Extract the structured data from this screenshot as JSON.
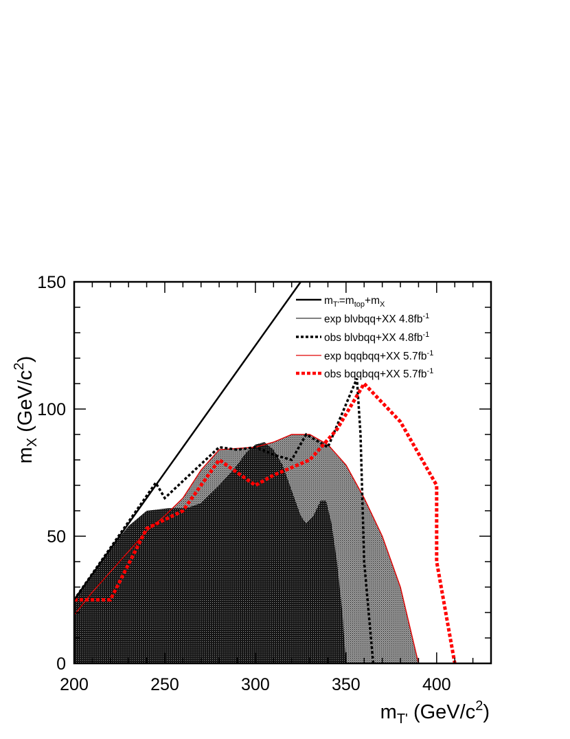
{
  "chart_data": {
    "type": "area",
    "xlabel": {
      "main": "m",
      "sub": "T'",
      "units": "(GeV/c",
      "sup": "2",
      "close": ")"
    },
    "ylabel": {
      "main": "m",
      "sub": "X",
      "units": "(GeV/c",
      "sup": "2",
      "close": ")"
    },
    "xlim": [
      200,
      430
    ],
    "ylim": [
      0,
      150
    ],
    "xticks": [
      200,
      250,
      300,
      350,
      400
    ],
    "yticks": [
      0,
      50,
      100,
      150
    ],
    "grid": false,
    "legend_position": "top-right",
    "series": [
      {
        "name": "exp blvbqq+XX 4.8fb-1",
        "kind": "filled-region",
        "color": "#222222",
        "points": [
          [
            200,
            25
          ],
          [
            210,
            35
          ],
          [
            220,
            45
          ],
          [
            230,
            54
          ],
          [
            240,
            60
          ],
          [
            252,
            61
          ],
          [
            262,
            61
          ],
          [
            270,
            63
          ],
          [
            280,
            70
          ],
          [
            290,
            78
          ],
          [
            295,
            83
          ],
          [
            300,
            86
          ],
          [
            305,
            87
          ],
          [
            310,
            84
          ],
          [
            315,
            78
          ],
          [
            320,
            68
          ],
          [
            325,
            58
          ],
          [
            328,
            55
          ],
          [
            332,
            58
          ],
          [
            336,
            64
          ],
          [
            339,
            64
          ],
          [
            342,
            55
          ],
          [
            345,
            40
          ],
          [
            348,
            20
          ],
          [
            350,
            0
          ]
        ]
      },
      {
        "name": "exp bqqbqq+XX 5.7fb-1",
        "kind": "filled-region",
        "color": "#e00000",
        "points": [
          [
            200,
            19
          ],
          [
            210,
            28
          ],
          [
            220,
            36
          ],
          [
            230,
            44
          ],
          [
            240,
            52
          ],
          [
            250,
            58
          ],
          [
            260,
            65
          ],
          [
            270,
            76
          ],
          [
            280,
            84
          ],
          [
            290,
            84.5
          ],
          [
            300,
            85
          ],
          [
            310,
            87
          ],
          [
            320,
            90
          ],
          [
            330,
            90
          ],
          [
            340,
            86
          ],
          [
            350,
            78
          ],
          [
            360,
            65
          ],
          [
            370,
            50
          ],
          [
            380,
            30
          ],
          [
            390,
            0
          ]
        ]
      },
      {
        "name": "obs blvbqq+XX 4.8fb-1",
        "kind": "line",
        "color": "#000000",
        "points": [
          [
            200,
            25
          ],
          [
            245,
            71
          ],
          [
            250,
            65
          ],
          [
            280,
            85
          ],
          [
            290,
            84
          ],
          [
            300,
            85
          ],
          [
            310,
            82
          ],
          [
            320,
            80
          ],
          [
            328,
            90
          ],
          [
            340,
            85
          ],
          [
            356,
            112
          ],
          [
            358,
            90
          ],
          [
            360,
            40
          ],
          [
            365,
            0
          ]
        ]
      },
      {
        "name": "obs bqqbqq+XX 5.7fb-1",
        "kind": "line",
        "color": "#ff0000",
        "points": [
          [
            200,
            25
          ],
          [
            220,
            25
          ],
          [
            240,
            53
          ],
          [
            260,
            60
          ],
          [
            280,
            80
          ],
          [
            300,
            70
          ],
          [
            310,
            74
          ],
          [
            330,
            80
          ],
          [
            345,
            92
          ],
          [
            360,
            110
          ],
          [
            380,
            95
          ],
          [
            400,
            70
          ],
          [
            400,
            40
          ],
          [
            410,
            0
          ]
        ]
      },
      {
        "name": "mT'=mtop+mX",
        "kind": "line",
        "color": "#000000",
        "points": [
          [
            200,
            25
          ],
          [
            325,
            150
          ]
        ]
      }
    ],
    "legend": [
      {
        "main": "m",
        "parts": [
          [
            "T'",
            "sub"
          ],
          [
            "=m",
            ""
          ],
          [
            "top",
            "sub"
          ],
          [
            "+m",
            ""
          ],
          [
            "X",
            "sub"
          ]
        ],
        "style": "solid-thick",
        "color": "#000000"
      },
      {
        "text": "exp blνbqq+XX 4.8fb",
        "sup": "-1",
        "style": "solid-thin",
        "color": "#000000"
      },
      {
        "text": "obs blνbqq+XX 4.8fb",
        "sup": "-1",
        "style": "dotted-black",
        "color": "#000000"
      },
      {
        "text": "exp bqqbqq+XX 5.7fb",
        "sup": "-1",
        "style": "solid-red",
        "color": "#e00000"
      },
      {
        "text": "obs bqqbqq+XX 5.7fb",
        "sup": "-1",
        "style": "dotted-red",
        "color": "#ff0000"
      }
    ]
  }
}
